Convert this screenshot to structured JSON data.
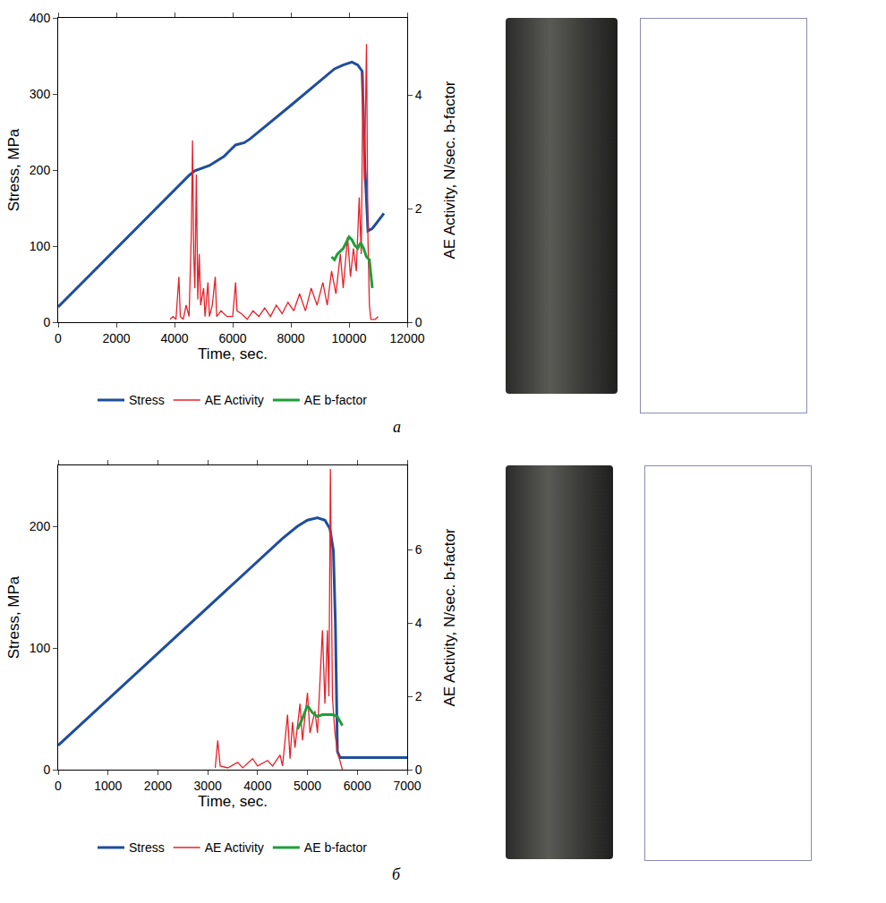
{
  "chart_data": [
    {
      "type": "line",
      "panel": "a",
      "x_label": "Time, sec.",
      "y_label": "Stress, MPa",
      "y2_label": "AE Activity, N/sec. b-factor",
      "xlim": [
        0,
        12000
      ],
      "xticks": [
        0,
        2000,
        4000,
        6000,
        8000,
        10000,
        12000
      ],
      "ylim": [
        0,
        400
      ],
      "yticks": [
        0,
        100,
        200,
        300,
        400
      ],
      "y2lim": [
        0,
        5.36
      ],
      "y2ticks": [
        0,
        2,
        4
      ],
      "grid": false,
      "legend": "bottom",
      "series": [
        {
          "name": "Stress",
          "color": "#1f4e9a",
          "axis": "y",
          "x": [
            0,
            4500,
            4700,
            5200,
            5700,
            6100,
            6400,
            6600,
            8000,
            9500,
            9800,
            10100,
            10300,
            10450,
            10550,
            10650,
            10800,
            11000,
            11200
          ],
          "values": [
            20,
            193,
            199,
            206,
            218,
            233,
            236,
            241,
            285,
            333,
            338,
            342,
            338,
            330,
            200,
            120,
            123,
            133,
            143
          ]
        },
        {
          "name": "AE Activity",
          "color": "#e8202a",
          "axis": "y2",
          "x": [
            3850,
            3950,
            4050,
            4150,
            4200,
            4300,
            4400,
            4500,
            4580,
            4620,
            4660,
            4700,
            4750,
            4800,
            4850,
            4900,
            5000,
            5050,
            5150,
            5200,
            5300,
            5400,
            5450,
            5600,
            5800,
            6000,
            6100,
            6150,
            6300,
            6500,
            6700,
            6900,
            7100,
            7300,
            7500,
            7700,
            7900,
            8100,
            8300,
            8500,
            8700,
            8900,
            9100,
            9250,
            9400,
            9550,
            9700,
            9800,
            9950,
            10050,
            10150,
            10250,
            10350,
            10420,
            10480,
            10530,
            10600,
            10650,
            10700,
            10750,
            10900,
            11000
          ],
          "values": [
            0.05,
            0.1,
            0.05,
            0.8,
            0.1,
            0.05,
            0.3,
            0.1,
            1.6,
            3.2,
            1.2,
            0.6,
            2.6,
            0.4,
            1.2,
            0.3,
            0.6,
            0.1,
            0.7,
            0.1,
            0.3,
            0.8,
            0.1,
            0.2,
            0.1,
            0.1,
            0.7,
            0.2,
            0.15,
            0.05,
            0.2,
            0.1,
            0.25,
            0.1,
            0.3,
            0.15,
            0.35,
            0.2,
            0.5,
            0.2,
            0.6,
            0.3,
            0.7,
            0.3,
            0.9,
            0.5,
            1.2,
            0.6,
            1.5,
            0.8,
            1.3,
            0.9,
            2.2,
            1.2,
            4.4,
            2.5,
            4.9,
            1.5,
            0.3,
            0.05,
            0.05,
            0.1
          ]
        },
        {
          "name": "AE b-factor",
          "color": "#1e9e3a",
          "axis": "y2",
          "x": [
            9400,
            9500,
            9600,
            9700,
            9800,
            9900,
            10000,
            10100,
            10200,
            10300,
            10400,
            10500,
            10600,
            10700,
            10800
          ],
          "values": [
            1.15,
            1.1,
            1.2,
            1.25,
            1.3,
            1.4,
            1.5,
            1.45,
            1.35,
            1.3,
            1.4,
            1.3,
            1.15,
            1.1,
            0.6
          ]
        }
      ]
    },
    {
      "type": "line",
      "panel": "б",
      "x_label": "Time, sec.",
      "y_label": "Stress, MPa",
      "y2_label": "AE Activity, N/sec. b-factor",
      "xlim": [
        0,
        7000
      ],
      "xticks": [
        0,
        1000,
        2000,
        3000,
        4000,
        5000,
        6000,
        7000
      ],
      "ylim": [
        0,
        250
      ],
      "yticks": [
        0,
        100,
        200
      ],
      "y2lim": [
        0,
        8.3
      ],
      "y2ticks": [
        0,
        2,
        4,
        6
      ],
      "grid": false,
      "legend": "bottom",
      "series": [
        {
          "name": "Stress",
          "color": "#1f4e9a",
          "axis": "y",
          "x": [
            0,
            4500,
            4800,
            5000,
            5200,
            5350,
            5450,
            5520,
            5560,
            5600,
            5650,
            7000
          ],
          "values": [
            20,
            190,
            200,
            205,
            207,
            205,
            198,
            180,
            120,
            15,
            10,
            10
          ]
        },
        {
          "name": "AE Activity",
          "color": "#e8202a",
          "axis": "y2",
          "x": [
            3150,
            3200,
            3250,
            3400,
            3600,
            3700,
            3900,
            4000,
            4200,
            4300,
            4450,
            4500,
            4600,
            4650,
            4700,
            4750,
            4850,
            4900,
            5000,
            5050,
            5150,
            5200,
            5300,
            5350,
            5400,
            5430,
            5460,
            5500,
            5550,
            5600,
            5700
          ],
          "values": [
            0.05,
            0.8,
            0.1,
            0.05,
            0.2,
            0.05,
            0.3,
            0.1,
            0.25,
            0.1,
            0.4,
            0.1,
            1.5,
            0.3,
            1.3,
            0.6,
            1.8,
            0.8,
            2.1,
            1.0,
            1.6,
            1.0,
            3.8,
            1.8,
            3.8,
            2.0,
            8.2,
            2.0,
            1.0,
            0.5,
            0
          ]
        },
        {
          "name": "AE b-factor",
          "color": "#1e9e3a",
          "axis": "y2",
          "x": [
            4800,
            4900,
            5000,
            5100,
            5200,
            5300,
            5400,
            5500,
            5600,
            5700
          ],
          "values": [
            1.1,
            1.4,
            1.75,
            1.55,
            1.45,
            1.5,
            1.5,
            1.5,
            1.45,
            1.2
          ]
        }
      ]
    }
  ]
}
